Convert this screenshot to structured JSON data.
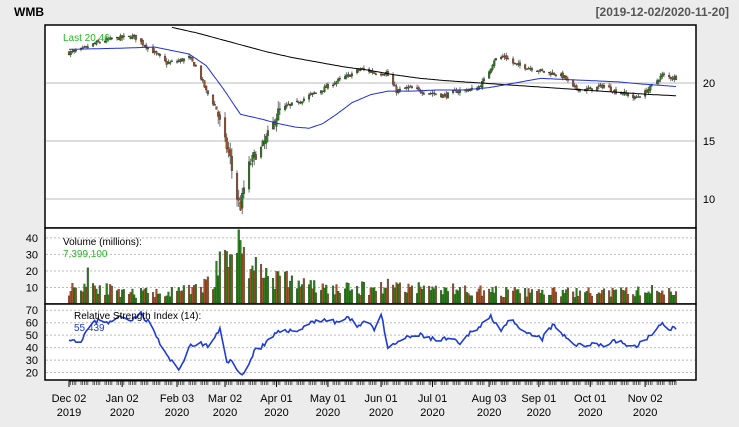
{
  "chart_data": {
    "type": "candlestick",
    "title": "WMB",
    "date_range": "[2019-12-02/2020-11-20]",
    "colors": {
      "background": "#ececec",
      "panel_bg": "#ffffff",
      "up": "#2e7d1f",
      "down": "#a0522d",
      "ma_short": "#1f2fd6",
      "ma_long": "#000000",
      "last_label": "#22bb22",
      "rsi_line": "#1f3bd6",
      "grid": "#bbbbbb"
    },
    "x_axis": {
      "tick_labels": [
        {
          "line1": "Dec 02",
          "line2": "2019",
          "day": 0
        },
        {
          "line1": "Jan 02",
          "line2": "2020",
          "day": 31
        },
        {
          "line1": "Feb 03",
          "line2": "2020",
          "day": 63
        },
        {
          "line1": "Mar 02",
          "line2": "2020",
          "day": 91
        },
        {
          "line1": "Apr 01",
          "line2": "2020",
          "day": 121
        },
        {
          "line1": "May 01",
          "line2": "2020",
          "day": 151
        },
        {
          "line1": "Jun 01",
          "line2": "2020",
          "day": 182
        },
        {
          "line1": "Jul 01",
          "line2": "2020",
          "day": 212
        },
        {
          "line1": "Aug 03",
          "line2": "2020",
          "day": 245
        },
        {
          "line1": "Sep 01",
          "line2": "2020",
          "day": 274
        },
        {
          "line1": "Oct 01",
          "line2": "2020",
          "day": 304
        },
        {
          "line1": "Nov 02",
          "line2": "2020",
          "day": 336
        }
      ],
      "last_day": 354
    },
    "price_panel": {
      "last_label": "Last 20.46",
      "y_ticks": [
        10,
        15,
        20
      ],
      "ylim": [
        7.5,
        25
      ],
      "price_points": [
        [
          0,
          22.6
        ],
        [
          8,
          22.9
        ],
        [
          15,
          23.4
        ],
        [
          22,
          23.7
        ],
        [
          30,
          23.9
        ],
        [
          38,
          24.0
        ],
        [
          44,
          23.3
        ],
        [
          50,
          22.6
        ],
        [
          57,
          21.7
        ],
        [
          64,
          21.9
        ],
        [
          70,
          22.2
        ],
        [
          75,
          21.2
        ],
        [
          80,
          19.3
        ],
        [
          86,
          17.8
        ],
        [
          90,
          15.4
        ],
        [
          94,
          13.5
        ],
        [
          97,
          10.5
        ],
        [
          100,
          9.3
        ],
        [
          104,
          12.6
        ],
        [
          108,
          13.7
        ],
        [
          112,
          14.3
        ],
        [
          117,
          15.8
        ],
        [
          122,
          17.5
        ],
        [
          127,
          18.0
        ],
        [
          133,
          18.3
        ],
        [
          140,
          18.9
        ],
        [
          146,
          19.3
        ],
        [
          152,
          19.8
        ],
        [
          158,
          20.3
        ],
        [
          164,
          20.7
        ],
        [
          170,
          21.2
        ],
        [
          176,
          21.0
        ],
        [
          181,
          20.8
        ],
        [
          185,
          20.9
        ],
        [
          191,
          19.3
        ],
        [
          198,
          19.6
        ],
        [
          205,
          19.3
        ],
        [
          212,
          19.1
        ],
        [
          219,
          18.9
        ],
        [
          226,
          19.3
        ],
        [
          232,
          19.4
        ],
        [
          238,
          19.5
        ],
        [
          243,
          20.4
        ],
        [
          248,
          22.0
        ],
        [
          254,
          22.3
        ],
        [
          260,
          21.6
        ],
        [
          266,
          21.4
        ],
        [
          272,
          21.2
        ],
        [
          278,
          20.9
        ],
        [
          284,
          20.8
        ],
        [
          289,
          20.5
        ],
        [
          294,
          19.6
        ],
        [
          300,
          19.4
        ],
        [
          306,
          19.5
        ],
        [
          312,
          19.8
        ],
        [
          318,
          19.3
        ],
        [
          324,
          19.1
        ],
        [
          330,
          18.7
        ],
        [
          336,
          19.2
        ],
        [
          341,
          19.9
        ],
        [
          346,
          20.7
        ],
        [
          350,
          20.5
        ],
        [
          354,
          20.46
        ]
      ],
      "ma_short_points": [
        [
          0,
          22.9
        ],
        [
          30,
          23.0
        ],
        [
          50,
          23.1
        ],
        [
          70,
          22.5
        ],
        [
          80,
          21.5
        ],
        [
          90,
          19.5
        ],
        [
          100,
          17.3
        ],
        [
          112,
          16.9
        ],
        [
          122,
          16.5
        ],
        [
          132,
          16.2
        ],
        [
          140,
          16.1
        ],
        [
          148,
          16.5
        ],
        [
          156,
          17.3
        ],
        [
          165,
          18.3
        ],
        [
          176,
          19.0
        ],
        [
          186,
          19.3
        ],
        [
          200,
          19.3
        ],
        [
          215,
          19.4
        ],
        [
          230,
          19.4
        ],
        [
          245,
          19.6
        ],
        [
          260,
          20.0
        ],
        [
          275,
          20.4
        ],
        [
          290,
          20.3
        ],
        [
          305,
          20.2
        ],
        [
          320,
          20.1
        ],
        [
          335,
          19.9
        ],
        [
          345,
          19.8
        ],
        [
          354,
          19.7
        ]
      ],
      "ma_long_points": [
        [
          60,
          24.8
        ],
        [
          75,
          24.3
        ],
        [
          90,
          23.7
        ],
        [
          100,
          23.3
        ],
        [
          115,
          22.7
        ],
        [
          130,
          22.2
        ],
        [
          145,
          21.8
        ],
        [
          160,
          21.4
        ],
        [
          175,
          21.1
        ],
        [
          190,
          20.7
        ],
        [
          205,
          20.4
        ],
        [
          220,
          20.2
        ],
        [
          240,
          20.0
        ],
        [
          260,
          19.8
        ],
        [
          280,
          19.6
        ],
        [
          300,
          19.4
        ],
        [
          320,
          19.2
        ],
        [
          340,
          19.0
        ],
        [
          354,
          18.9
        ]
      ]
    },
    "volume_panel": {
      "label": "Volume (millions):",
      "last_value": "7,399,100",
      "y_ticks": [
        10,
        20,
        30,
        40
      ],
      "ylim": [
        0,
        46
      ],
      "profile_points": [
        [
          0,
          9
        ],
        [
          12,
          12
        ],
        [
          20,
          10
        ],
        [
          30,
          6
        ],
        [
          45,
          7
        ],
        [
          60,
          7
        ],
        [
          75,
          9
        ],
        [
          82,
          13
        ],
        [
          88,
          22
        ],
        [
          92,
          28
        ],
        [
          96,
          32
        ],
        [
          100,
          30
        ],
        [
          105,
          24
        ],
        [
          112,
          20
        ],
        [
          120,
          16
        ],
        [
          130,
          14
        ],
        [
          140,
          11
        ],
        [
          150,
          9
        ],
        [
          165,
          9
        ],
        [
          180,
          10
        ],
        [
          190,
          12
        ],
        [
          200,
          10
        ],
        [
          220,
          9
        ],
        [
          240,
          8
        ],
        [
          260,
          7
        ],
        [
          280,
          7
        ],
        [
          300,
          7
        ],
        [
          320,
          7
        ],
        [
          340,
          8
        ],
        [
          354,
          7.4
        ]
      ]
    },
    "rsi_panel": {
      "label": "Relative Strength Index (14):",
      "last_value": "55.439",
      "y_ticks": [
        20,
        30,
        40,
        50,
        60,
        70
      ],
      "ylim": [
        14,
        75
      ],
      "rsi_points": [
        [
          0,
          48
        ],
        [
          6,
          44
        ],
        [
          12,
          57
        ],
        [
          18,
          63
        ],
        [
          24,
          60
        ],
        [
          30,
          65
        ],
        [
          36,
          63
        ],
        [
          42,
          67
        ],
        [
          48,
          58
        ],
        [
          54,
          40
        ],
        [
          60,
          28
        ],
        [
          64,
          22
        ],
        [
          70,
          40
        ],
        [
          76,
          44
        ],
        [
          82,
          40
        ],
        [
          88,
          55
        ],
        [
          92,
          30
        ],
        [
          96,
          28
        ],
        [
          99,
          19
        ],
        [
          104,
          22
        ],
        [
          108,
          38
        ],
        [
          114,
          42
        ],
        [
          120,
          50
        ],
        [
          126,
          55
        ],
        [
          132,
          52
        ],
        [
          138,
          58
        ],
        [
          144,
          62
        ],
        [
          150,
          62
        ],
        [
          156,
          60
        ],
        [
          162,
          64
        ],
        [
          168,
          58
        ],
        [
          174,
          62
        ],
        [
          178,
          55
        ],
        [
          182,
          67
        ],
        [
          186,
          38
        ],
        [
          192,
          45
        ],
        [
          198,
          48
        ],
        [
          204,
          50
        ],
        [
          210,
          48
        ],
        [
          216,
          45
        ],
        [
          222,
          48
        ],
        [
          228,
          42
        ],
        [
          234,
          52
        ],
        [
          240,
          58
        ],
        [
          246,
          65
        ],
        [
          252,
          55
        ],
        [
          258,
          62
        ],
        [
          264,
          52
        ],
        [
          270,
          50
        ],
        [
          276,
          47
        ],
        [
          282,
          58
        ],
        [
          288,
          50
        ],
        [
          294,
          44
        ],
        [
          300,
          40
        ],
        [
          306,
          45
        ],
        [
          312,
          41
        ],
        [
          318,
          46
        ],
        [
          324,
          43
        ],
        [
          330,
          40
        ],
        [
          336,
          47
        ],
        [
          342,
          52
        ],
        [
          346,
          60
        ],
        [
          350,
          56
        ],
        [
          354,
          55.4
        ]
      ]
    }
  }
}
